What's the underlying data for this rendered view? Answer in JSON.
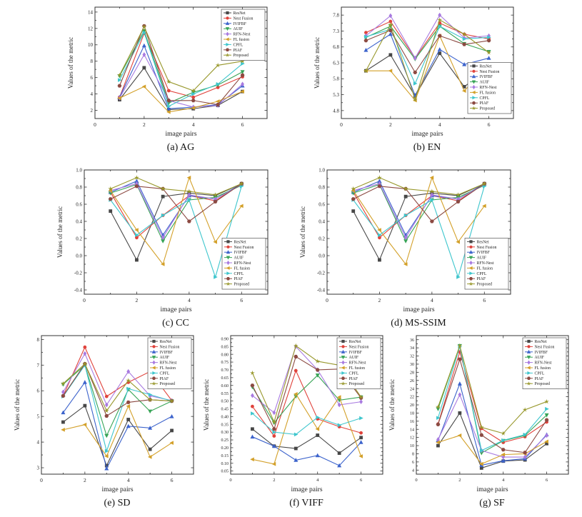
{
  "figure": {
    "xlabel": "image pairs",
    "ylabel": "Values of the metric"
  },
  "series_styles": [
    {
      "name": "ResNet",
      "color": "#474747",
      "marker": "square"
    },
    {
      "name": "Nest Fusion",
      "color": "#e0433c",
      "marker": "circle"
    },
    {
      "name": "IVIFBF",
      "color": "#3c63cc",
      "marker": "triangle-up"
    },
    {
      "name": "AUIF",
      "color": "#37a456",
      "marker": "triangle-down"
    },
    {
      "name": "RFN-Nest",
      "color": "#a87ae0",
      "marker": "diamond"
    },
    {
      "name": "FL fusion",
      "color": "#d3a029",
      "marker": "triangle-left"
    },
    {
      "name": "CPFL",
      "color": "#3ec6cd",
      "marker": "triangle-right"
    },
    {
      "name": "PIAF",
      "color": "#8c4a42",
      "marker": "hexagon"
    },
    {
      "name": "Proposed",
      "color": "#98982c",
      "marker": "star"
    }
  ],
  "chart_data": [
    {
      "type": "line",
      "caption": "(a) AG",
      "legend": "tr",
      "tickfmt": 0,
      "x": [
        1,
        2,
        3,
        4,
        5,
        6
      ],
      "xlim": [
        0,
        7
      ],
      "xticks": [
        0,
        2,
        4,
        6
      ],
      "ylim": [
        1,
        14.6
      ],
      "yticks": [
        2,
        4,
        6,
        8,
        10,
        12,
        14
      ],
      "series": [
        {
          "name": "ResNet",
          "values": [
            3.3,
            7.2,
            2.1,
            2.2,
            2.6,
            4.3
          ]
        },
        {
          "name": "Nest Fusion",
          "values": [
            3.6,
            11.4,
            4.4,
            3.6,
            4.8,
            6.1
          ]
        },
        {
          "name": "IVIFBF",
          "values": [
            3.6,
            9.9,
            2.2,
            2.4,
            2.7,
            5.0
          ]
        },
        {
          "name": "AUIF",
          "values": [
            6.2,
            11.7,
            2.9,
            4.2,
            5.1,
            6.7
          ]
        },
        {
          "name": "RFN-Nest",
          "values": [
            3.5,
            8.8,
            3.2,
            2.4,
            2.6,
            5.2
          ]
        },
        {
          "name": "FL fusion",
          "values": [
            3.5,
            4.9,
            1.8,
            2.3,
            3.1,
            4.3
          ]
        },
        {
          "name": "CPFL",
          "values": [
            5.7,
            11.5,
            2.5,
            4.0,
            5.2,
            7.7
          ]
        },
        {
          "name": "PIAF",
          "values": [
            5.0,
            12.3,
            3.2,
            3.2,
            2.7,
            6.3
          ]
        },
        {
          "name": "Proposed",
          "values": [
            6.3,
            12.2,
            5.5,
            4.4,
            7.5,
            8.0
          ]
        }
      ]
    },
    {
      "type": "line",
      "caption": "(b) EN",
      "legend": "br",
      "tickfmt": 1,
      "x": [
        1,
        2,
        3,
        4,
        5,
        6
      ],
      "xlim": [
        0,
        7
      ],
      "xticks": [
        0,
        2,
        4,
        6
      ],
      "ylim": [
        4.55,
        8.05
      ],
      "yticks": [
        4.8,
        5.3,
        5.8,
        6.3,
        6.8,
        7.3,
        7.8
      ],
      "series": [
        {
          "name": "ResNet",
          "values": [
            6.05,
            6.55,
            5.25,
            6.6,
            5.55,
            6.15
          ]
        },
        {
          "name": "Nest Fusion",
          "values": [
            7.25,
            7.6,
            6.45,
            7.55,
            7.2,
            7.05
          ]
        },
        {
          "name": "IVIFBF",
          "values": [
            6.7,
            7.2,
            5.28,
            6.72,
            6.25,
            6.45
          ]
        },
        {
          "name": "AUIF",
          "values": [
            7.1,
            7.45,
            6.42,
            7.45,
            6.9,
            6.65
          ]
        },
        {
          "name": "RFN-Nest",
          "values": [
            7.15,
            7.78,
            6.45,
            7.8,
            7.08,
            7.15
          ]
        },
        {
          "name": "FL fusion",
          "values": [
            6.05,
            6.05,
            5.12,
            7.15,
            5.42,
            6.25
          ]
        },
        {
          "name": "CPFL",
          "values": [
            7.12,
            7.35,
            5.65,
            7.45,
            7.05,
            7.1
          ]
        },
        {
          "name": "PIAF",
          "values": [
            7.0,
            7.32,
            6.0,
            7.15,
            6.88,
            7.0
          ]
        },
        {
          "name": "Proposed",
          "values": [
            6.05,
            7.5,
            5.15,
            7.65,
            7.2,
            6.62
          ]
        }
      ]
    },
    {
      "type": "line",
      "caption": "(c) CC",
      "legend": "br",
      "tickfmt": 1,
      "x": [
        1,
        2,
        3,
        4,
        5,
        6
      ],
      "xlim": [
        0,
        7
      ],
      "xticks": [
        0,
        2,
        4,
        6
      ],
      "ylim": [
        -0.45,
        1.0
      ],
      "yticks": [
        -0.4,
        -0.2,
        0.0,
        0.2,
        0.4,
        0.6,
        0.8,
        1.0
      ],
      "series": [
        {
          "name": "ResNet",
          "values": [
            0.52,
            -0.05,
            0.69,
            0.73,
            0.7,
            0.84
          ]
        },
        {
          "name": "Nest Fusion",
          "values": [
            0.74,
            0.21,
            0.47,
            0.7,
            0.64,
            0.84
          ]
        },
        {
          "name": "IVIFBF",
          "values": [
            0.74,
            0.87,
            0.24,
            0.7,
            0.66,
            0.84
          ]
        },
        {
          "name": "AUIF",
          "values": [
            0.73,
            0.83,
            0.17,
            0.65,
            0.68,
            0.82
          ]
        },
        {
          "name": "RFN-Nest",
          "values": [
            0.76,
            0.84,
            0.21,
            0.71,
            0.66,
            0.83
          ]
        },
        {
          "name": "FL fusion",
          "values": [
            0.76,
            0.3,
            -0.1,
            0.91,
            0.16,
            0.58
          ]
        },
        {
          "name": "CPFL",
          "values": [
            0.65,
            0.24,
            0.47,
            0.65,
            -0.25,
            0.81
          ]
        },
        {
          "name": "PIAF",
          "values": [
            0.66,
            0.81,
            0.78,
            0.4,
            0.63,
            0.84
          ]
        },
        {
          "name": "Proposed",
          "values": [
            0.78,
            0.91,
            0.78,
            0.75,
            0.71,
            0.84
          ]
        }
      ]
    },
    {
      "type": "line",
      "caption": "(d) MS-SSIM",
      "legend": "br",
      "tickfmt": 1,
      "x": [
        1,
        2,
        3,
        4,
        5,
        6
      ],
      "xlim": [
        0,
        7
      ],
      "xticks": [
        0,
        2,
        4,
        6
      ],
      "ylim": [
        -0.45,
        1.0
      ],
      "yticks": [
        -0.4,
        -0.2,
        0.0,
        0.2,
        0.4,
        0.6,
        0.8,
        1.0
      ],
      "series": [
        {
          "name": "ResNet",
          "values": [
            0.52,
            -0.05,
            0.69,
            0.73,
            0.7,
            0.84
          ]
        },
        {
          "name": "Nest Fusion",
          "values": [
            0.74,
            0.21,
            0.47,
            0.7,
            0.64,
            0.84
          ]
        },
        {
          "name": "IVIFBF",
          "values": [
            0.74,
            0.87,
            0.24,
            0.7,
            0.66,
            0.84
          ]
        },
        {
          "name": "AUIF",
          "values": [
            0.73,
            0.83,
            0.17,
            0.65,
            0.68,
            0.82
          ]
        },
        {
          "name": "RFN-Nest",
          "values": [
            0.76,
            0.84,
            0.21,
            0.71,
            0.66,
            0.83
          ]
        },
        {
          "name": "FL fusion",
          "values": [
            0.76,
            0.3,
            -0.1,
            0.91,
            0.16,
            0.58
          ]
        },
        {
          "name": "CPFL",
          "values": [
            0.65,
            0.24,
            0.47,
            0.65,
            -0.25,
            0.81
          ]
        },
        {
          "name": "PIAF",
          "values": [
            0.66,
            0.81,
            0.78,
            0.4,
            0.63,
            0.84
          ]
        },
        {
          "name": "Proposed",
          "values": [
            0.78,
            0.91,
            0.78,
            0.75,
            0.71,
            0.84
          ]
        }
      ]
    },
    {
      "type": "line",
      "caption": "(e) SD",
      "legend": "tr",
      "tickfmt": 0,
      "x": [
        1,
        2,
        3,
        4,
        5,
        6
      ],
      "xlim": [
        0,
        7
      ],
      "xticks": [
        0,
        2,
        4,
        6
      ],
      "ylim": [
        2.75,
        8.15
      ],
      "yticks": [
        3,
        4,
        5,
        6,
        7,
        8
      ],
      "series": [
        {
          "name": "ResNet",
          "values": [
            4.78,
            5.42,
            3.08,
            4.88,
            3.72,
            4.45
          ]
        },
        {
          "name": "Nest Fusion",
          "values": [
            5.8,
            7.7,
            5.78,
            6.33,
            6.75,
            5.62
          ]
        },
        {
          "name": "IVIFBF",
          "values": [
            5.15,
            6.33,
            2.97,
            4.62,
            4.55,
            5.0
          ]
        },
        {
          "name": "AUIF",
          "values": [
            6.25,
            7.0,
            4.25,
            6.05,
            5.2,
            5.6
          ]
        },
        {
          "name": "RFN-Nest",
          "values": [
            5.95,
            7.45,
            5.45,
            6.75,
            5.8,
            5.62
          ]
        },
        {
          "name": "FL fusion",
          "values": [
            4.48,
            4.68,
            3.45,
            5.4,
            3.42,
            3.97
          ]
        },
        {
          "name": "CPFL",
          "values": [
            5.78,
            7.0,
            3.65,
            6.08,
            5.85,
            5.6
          ]
        },
        {
          "name": "PIAF",
          "values": [
            5.8,
            7.05,
            5.02,
            5.55,
            5.65,
            5.6
          ]
        },
        {
          "name": "Proposed",
          "values": [
            6.28,
            7.05,
            5.22,
            6.4,
            5.65,
            5.6
          ]
        }
      ]
    },
    {
      "type": "line",
      "caption": "(f) VIFF",
      "legend": "tr",
      "tickfmt": 2,
      "x": [
        1,
        2,
        3,
        4,
        5,
        6
      ],
      "xlim": [
        0,
        7
      ],
      "xticks": [
        0,
        2,
        4,
        6
      ],
      "ylim": [
        0.03,
        0.92
      ],
      "yticks": [
        0.05,
        0.1,
        0.15,
        0.2,
        0.25,
        0.3,
        0.35,
        0.4,
        0.45,
        0.5,
        0.55,
        0.6,
        0.65,
        0.7,
        0.75,
        0.8,
        0.85,
        0.9
      ],
      "series": [
        {
          "name": "ResNet",
          "values": [
            0.32,
            0.21,
            0.195,
            0.28,
            0.165,
            0.265
          ]
        },
        {
          "name": "Nest Fusion",
          "values": [
            0.465,
            0.275,
            0.695,
            0.385,
            0.335,
            0.295
          ]
        },
        {
          "name": "IVIFBF",
          "values": [
            0.27,
            0.21,
            0.12,
            0.15,
            0.085,
            0.235
          ]
        },
        {
          "name": "AUIF",
          "values": [
            0.59,
            0.36,
            0.53,
            0.665,
            0.505,
            0.525
          ]
        },
        {
          "name": "RFN-Nest",
          "values": [
            0.535,
            0.425,
            0.85,
            0.7,
            0.475,
            0.495
          ]
        },
        {
          "name": "FL fusion",
          "values": [
            0.125,
            0.095,
            0.545,
            0.32,
            0.525,
            0.145
          ]
        },
        {
          "name": "CPFL",
          "values": [
            0.42,
            0.3,
            0.285,
            0.395,
            0.345,
            0.39
          ]
        },
        {
          "name": "PIAF",
          "values": [
            0.6,
            0.32,
            0.785,
            0.7,
            0.705,
            0.52
          ]
        },
        {
          "name": "Proposed",
          "values": [
            0.68,
            0.365,
            0.855,
            0.755,
            0.73,
            0.525
          ]
        }
      ]
    },
    {
      "type": "line",
      "caption": "(g) SF",
      "legend": "tr",
      "tickfmt": 0,
      "x": [
        1,
        2,
        3,
        4,
        5,
        6
      ],
      "xlim": [
        0,
        7
      ],
      "xticks": [
        0,
        2,
        4,
        6
      ],
      "ylim": [
        3,
        37
      ],
      "yticks": [
        4,
        6,
        8,
        10,
        12,
        14,
        16,
        18,
        20,
        22,
        24,
        26,
        28,
        30,
        32,
        34,
        36
      ],
      "series": [
        {
          "name": "ResNet",
          "values": [
            10.0,
            18.0,
            4.5,
            6.2,
            6.5,
            10.5
          ]
        },
        {
          "name": "Nest Fusion",
          "values": [
            15.3,
            33.0,
            14.2,
            10.8,
            12.2,
            15.8
          ]
        },
        {
          "name": "IVIFBF",
          "values": [
            11.3,
            25.2,
            5.2,
            6.3,
            6.8,
            12.7
          ]
        },
        {
          "name": "AUIF",
          "values": [
            19.0,
            34.5,
            8.2,
            11.2,
            12.5,
            17.5
          ]
        },
        {
          "name": "RFN-Nest",
          "values": [
            11.5,
            22.5,
            8.8,
            7.2,
            7.2,
            12.5
          ]
        },
        {
          "name": "FL fusion",
          "values": [
            10.8,
            12.5,
            5.5,
            7.8,
            8.0,
            11.0
          ]
        },
        {
          "name": "CPFL",
          "values": [
            16.8,
            34.3,
            8.8,
            11.3,
            12.7,
            19.0
          ]
        },
        {
          "name": "PIAF",
          "values": [
            15.2,
            31.2,
            12.6,
            9.0,
            8.3,
            16.3
          ]
        },
        {
          "name": "Proposed",
          "values": [
            19.5,
            34.5,
            14.5,
            13.0,
            18.8,
            20.8
          ]
        }
      ]
    }
  ]
}
